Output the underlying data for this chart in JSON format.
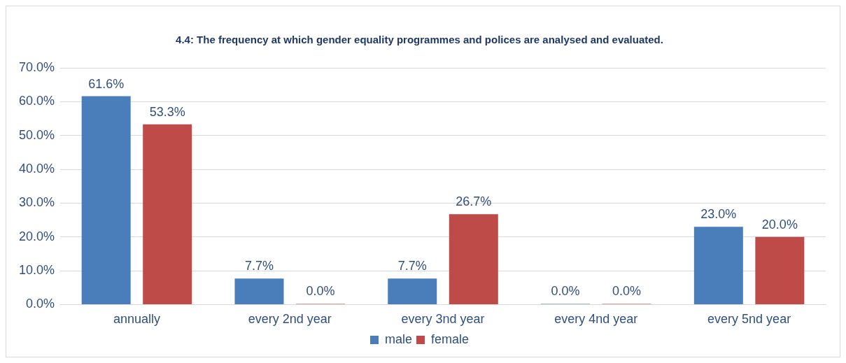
{
  "chart_data": {
    "type": "bar",
    "title": "4.4: The frequency at which gender equality programmes and polices are analysed and evaluated.",
    "categories": [
      "annually",
      "every 2nd year",
      "every 3nd year",
      "every 4nd year",
      "every 5nd year"
    ],
    "series": [
      {
        "name": "male",
        "color": "#4a7ebb",
        "values": [
          61.6,
          7.7,
          7.7,
          0,
          23
        ],
        "value_labels": [
          "61.6%",
          "7.7%",
          "7.7%",
          "0.0%",
          "23.0%"
        ]
      },
      {
        "name": "female",
        "color": "#be4b48",
        "values": [
          53.3,
          0,
          26.7,
          0,
          20
        ],
        "value_labels": [
          "53.3%",
          "0.0%",
          "26.7%",
          "0.0%",
          "20.0%"
        ]
      }
    ],
    "ylim": [
      0,
      70
    ],
    "yticks": [
      {
        "value": 0,
        "label": "0.0%"
      },
      {
        "value": 10,
        "label": "10.0%"
      },
      {
        "value": 20,
        "label": "20.0%"
      },
      {
        "value": 30,
        "label": "30.0%"
      },
      {
        "value": 40,
        "label": "40.0%"
      },
      {
        "value": 50,
        "label": "50.0%"
      },
      {
        "value": 60,
        "label": "60.0%"
      },
      {
        "value": 70,
        "label": "70.0%"
      }
    ],
    "grid": "y",
    "legend": "bottom"
  }
}
